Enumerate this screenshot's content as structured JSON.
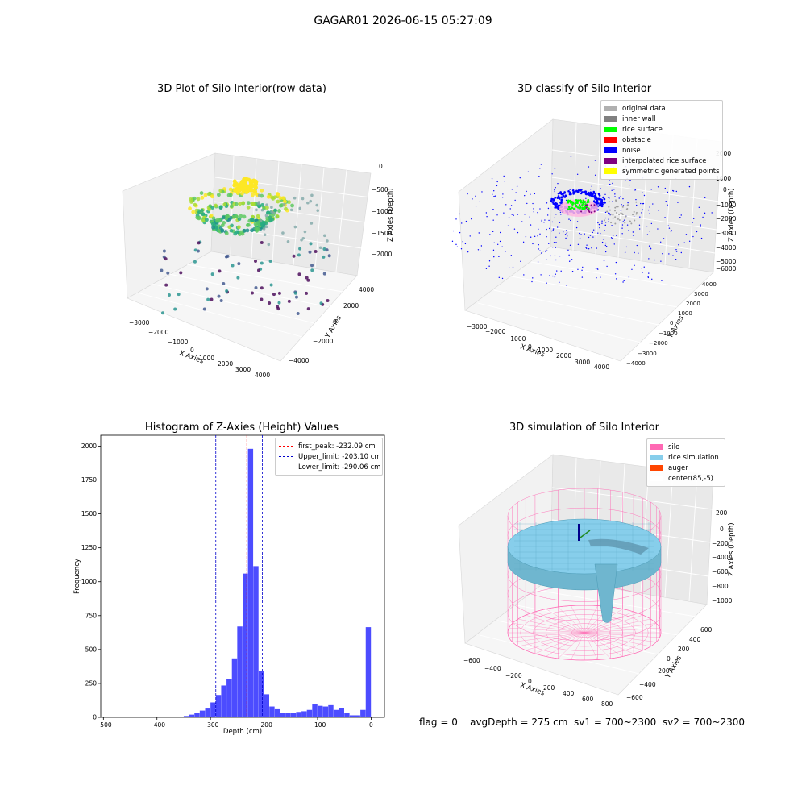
{
  "suptitle": "GAGAR01 2026-06-15 05:27:09",
  "footer": "flag = 0    avgDepth = 275 cm  sv1 = 700~2300  sv2 = 700~2300",
  "chart_data": [
    {
      "type": "scatter",
      "dims": 3,
      "title": "3D Plot of Silo Interior(row data)",
      "xlabel": "X Axies",
      "ylabel": "Y Axies",
      "zlabel": "Z Axies (Depth)",
      "xticks": [
        "−3000",
        "−2000",
        "−1000",
        "0",
        "1000",
        "2000",
        "3000",
        "4000"
      ],
      "yticks": [
        "−4000",
        "−2000",
        "0",
        "2000",
        "4000"
      ],
      "zticks": [
        "0",
        "−500",
        "−1000",
        "−1500",
        "−2000"
      ],
      "colormap": "viridis"
    },
    {
      "type": "scatter",
      "dims": 3,
      "title": "3D classify of Silo Interior",
      "xlabel": "X Axies",
      "ylabel": "Y Axies",
      "zlabel": "Z Axies (Depth)",
      "xticks": [
        "−3000",
        "−2000",
        "−1000",
        "0",
        "1000",
        "2000",
        "3000",
        "4000"
      ],
      "yticks": [
        "−4000",
        "−3000",
        "−2000",
        "−1000",
        "0",
        "1000",
        "2000",
        "3000",
        "4000"
      ],
      "zticks": [
        "2000",
        "1000",
        "0",
        "−1000",
        "−2000",
        "−3000",
        "−4000",
        "−5000",
        "−6000"
      ],
      "legend": [
        {
          "label": "original data",
          "color": "#b0b0b0"
        },
        {
          "label": "inner wall",
          "color": "#808080"
        },
        {
          "label": "rice surface",
          "color": "#00ff00"
        },
        {
          "label": "obstacle",
          "color": "#ff0000"
        },
        {
          "label": "noise",
          "color": "#0000ff"
        },
        {
          "label": "interpolated rice surface",
          "color": "#800080"
        },
        {
          "label": "symmetric generated points",
          "color": "#ffff00"
        }
      ]
    },
    {
      "type": "bar",
      "title": "Histogram of Z-Axies (Height) Values",
      "xlabel": "Depth (cm)",
      "ylabel": "Frequency",
      "xlim": [
        -505,
        25
      ],
      "ylim": [
        0,
        2080
      ],
      "xticks": [
        -500,
        -400,
        -300,
        -200,
        -100,
        0
      ],
      "xtick_labels": [
        "−500",
        "−400",
        "−300",
        "−200",
        "−100",
        "0"
      ],
      "yticks": [
        0,
        250,
        500,
        750,
        1000,
        1250,
        1500,
        1750,
        2000
      ],
      "bar_color": "#0000ff",
      "bins": [
        {
          "x0": -380,
          "x1": -370,
          "v": 2
        },
        {
          "x0": -370,
          "x1": -360,
          "v": 3
        },
        {
          "x0": -360,
          "x1": -350,
          "v": 5
        },
        {
          "x0": -350,
          "x1": -340,
          "v": 10
        },
        {
          "x0": -340,
          "x1": -330,
          "v": 20
        },
        {
          "x0": -330,
          "x1": -320,
          "v": 30
        },
        {
          "x0": -320,
          "x1": -310,
          "v": 50
        },
        {
          "x0": -310,
          "x1": -300,
          "v": 65
        },
        {
          "x0": -300,
          "x1": -290,
          "v": 110
        },
        {
          "x0": -290,
          "x1": -280,
          "v": 165
        },
        {
          "x0": -280,
          "x1": -270,
          "v": 235
        },
        {
          "x0": -270,
          "x1": -260,
          "v": 285
        },
        {
          "x0": -260,
          "x1": -250,
          "v": 435
        },
        {
          "x0": -250,
          "x1": -240,
          "v": 670
        },
        {
          "x0": -240,
          "x1": -230,
          "v": 1060
        },
        {
          "x0": -230,
          "x1": -220,
          "v": 1980
        },
        {
          "x0": -220,
          "x1": -210,
          "v": 1115
        },
        {
          "x0": -210,
          "x1": -200,
          "v": 340
        },
        {
          "x0": -200,
          "x1": -190,
          "v": 170
        },
        {
          "x0": -190,
          "x1": -180,
          "v": 80
        },
        {
          "x0": -180,
          "x1": -170,
          "v": 60
        },
        {
          "x0": -170,
          "x1": -160,
          "v": 30
        },
        {
          "x0": -160,
          "x1": -150,
          "v": 30
        },
        {
          "x0": -150,
          "x1": -140,
          "v": 35
        },
        {
          "x0": -140,
          "x1": -130,
          "v": 40
        },
        {
          "x0": -130,
          "x1": -120,
          "v": 45
        },
        {
          "x0": -120,
          "x1": -110,
          "v": 55
        },
        {
          "x0": -110,
          "x1": -100,
          "v": 95
        },
        {
          "x0": -100,
          "x1": -90,
          "v": 85
        },
        {
          "x0": -90,
          "x1": -80,
          "v": 80
        },
        {
          "x0": -80,
          "x1": -70,
          "v": 90
        },
        {
          "x0": -70,
          "x1": -60,
          "v": 55
        },
        {
          "x0": -60,
          "x1": -50,
          "v": 70
        },
        {
          "x0": -50,
          "x1": -40,
          "v": 30
        },
        {
          "x0": -40,
          "x1": -30,
          "v": 15
        },
        {
          "x0": -30,
          "x1": -20,
          "v": 15
        },
        {
          "x0": -20,
          "x1": -10,
          "v": 55
        },
        {
          "x0": -10,
          "x1": 0,
          "v": 665
        }
      ],
      "vlines": [
        {
          "label": "first_peak: -232.09 cm",
          "x": -232.09,
          "color": "#ff0000"
        },
        {
          "label": "Upper_limit: -203.10 cm",
          "x": -203.1,
          "color": "#0000cc"
        },
        {
          "label": "Lower_limit: -290.06 cm",
          "x": -290.06,
          "color": "#0000cc"
        }
      ],
      "legend_position": "top-right"
    },
    {
      "type": "surface",
      "dims": 3,
      "title": "3D simulation of Silo Interior",
      "xlabel": "X Axies",
      "ylabel": "Y Axies",
      "zlabel": "Z Axies (Depth)",
      "xticks": [
        "−600",
        "−400",
        "−200",
        "0",
        "200",
        "400",
        "600",
        "800"
      ],
      "yticks": [
        "−600",
        "−400",
        "−200",
        "0",
        "200",
        "400",
        "600"
      ],
      "zticks": [
        "200",
        "0",
        "−200",
        "−400",
        "−600",
        "−800",
        "−1000"
      ],
      "legend": [
        {
          "label": "silo",
          "color": "#ff69b4"
        },
        {
          "label": "rice simulation",
          "color": "#87ceeb"
        },
        {
          "label": "auger",
          "color": "#ff4500"
        },
        {
          "label": "center(85,-5)",
          "color": "#ffffff"
        }
      ]
    }
  ]
}
